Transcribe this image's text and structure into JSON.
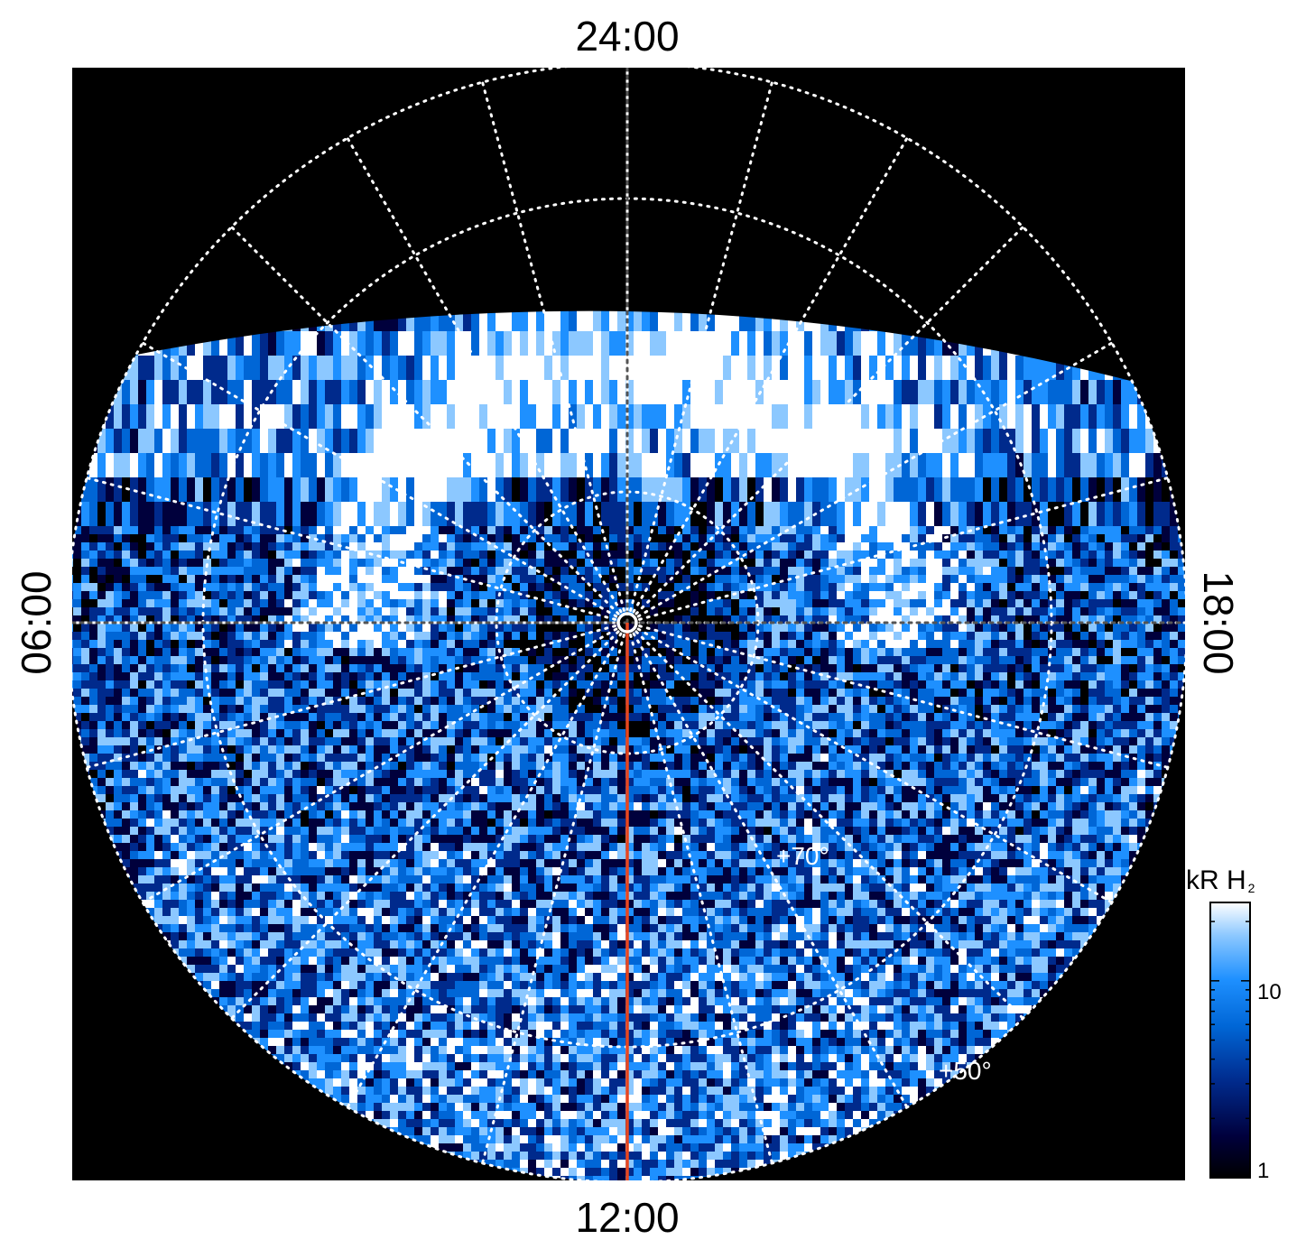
{
  "chart_data": {
    "type": "heatmap",
    "projection": "polar",
    "title": "",
    "local_time_labels": {
      "top": "24:00",
      "bottom": "12:00",
      "left": "06:00",
      "right": "18:00"
    },
    "latitude_labels": [
      "+70°",
      "+50°"
    ],
    "colorbar": {
      "title": "kR H",
      "title_subscript": "2",
      "scale": "log",
      "range": [
        1,
        25
      ],
      "tick_labels": [
        "1",
        "10"
      ],
      "colors": [
        "#000000",
        "#00003c",
        "#002a8c",
        "#0066d6",
        "#1e90ff",
        "#8cc8ff",
        "#ffffff"
      ]
    },
    "grid": true,
    "meridian_line_color": "#e8461e",
    "background": "#000000"
  }
}
